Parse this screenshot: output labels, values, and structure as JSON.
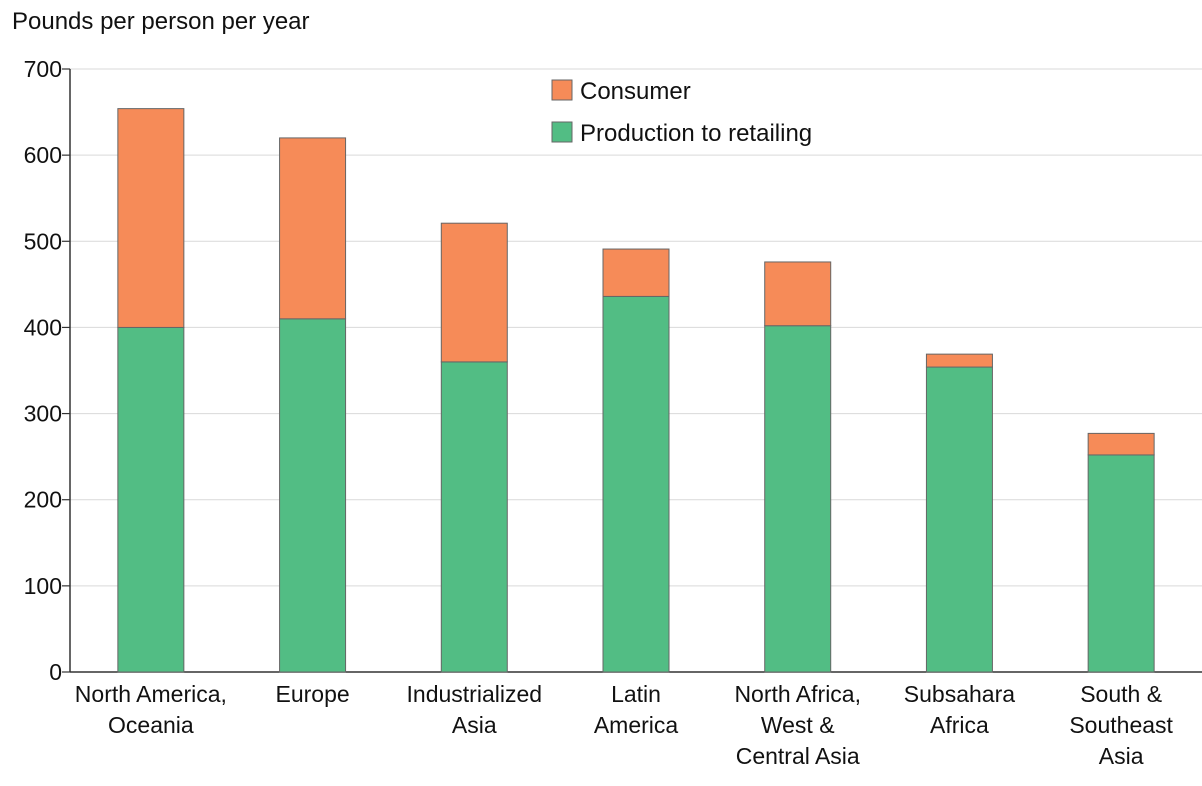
{
  "chart_data": {
    "type": "bar",
    "stacked": true,
    "title": "",
    "xlabel": "",
    "ylabel": "Pounds per person per year",
    "ylim": [
      0,
      700
    ],
    "yticks": [
      0,
      100,
      200,
      300,
      400,
      500,
      600,
      700
    ],
    "grid": true,
    "legend": "top-center",
    "categories": [
      [
        "North America,",
        "Oceania"
      ],
      [
        "Europe"
      ],
      [
        "Industrialized",
        "Asia"
      ],
      [
        "Latin",
        "America"
      ],
      [
        "North Africa,",
        "West &",
        "Central Asia"
      ],
      [
        "Subsahara",
        "Africa"
      ],
      [
        "South &",
        "Southeast",
        "Asia"
      ]
    ],
    "series": [
      {
        "name": "Production to retailing",
        "color": "#52bd84",
        "values": [
          400,
          410,
          360,
          436,
          402,
          354,
          252
        ]
      },
      {
        "name": "Consumer",
        "color": "#f68b58",
        "values": [
          254,
          210,
          161,
          55,
          74,
          15,
          25
        ]
      }
    ],
    "legend_order": [
      "Consumer",
      "Production to retailing"
    ]
  }
}
